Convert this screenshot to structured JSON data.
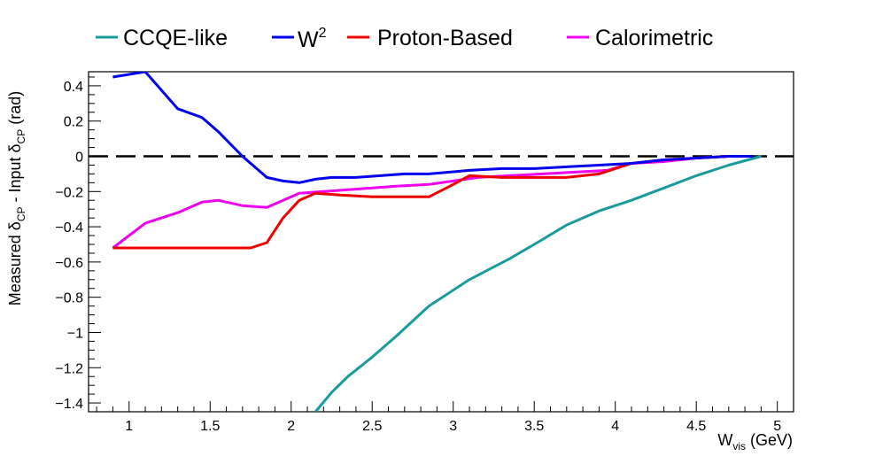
{
  "chart_data": {
    "type": "line",
    "xlabel_main": "W",
    "xlabel_sub": "vis",
    "xlabel_unit": " (GeV)",
    "ylabel_parts": {
      "a": "Measured δ",
      "a_sub": "CP",
      "b": " - Input δ",
      "b_sub": "CP",
      "c": " (rad)"
    },
    "xlim": [
      0.75,
      5.1
    ],
    "ylim": [
      -1.45,
      0.48
    ],
    "xticks": [
      1,
      1.5,
      2,
      2.5,
      3,
      3.5,
      4,
      4.5,
      5
    ],
    "xtick_labels": [
      "1",
      "1.5",
      "2",
      "2.5",
      "3",
      "3.5",
      "4",
      "4.5",
      "5"
    ],
    "yticks": [
      0.4,
      0.2,
      0,
      -0.2,
      -0.4,
      -0.6,
      -0.8,
      -1,
      -1.2,
      -1.4
    ],
    "ytick_labels": [
      "0.4",
      "0.2",
      "0",
      "−0.2",
      "−0.4",
      "−0.6",
      "−0.8",
      "−1",
      "−1.2",
      "−1.4"
    ],
    "reference_line": {
      "y": 0,
      "style": "dashed",
      "color": "#000000"
    },
    "series": [
      {
        "name": "CCQE-like",
        "color": "#1a9b9b",
        "x": [
          2.15,
          2.25,
          2.35,
          2.5,
          2.65,
          2.85,
          3.1,
          3.35,
          3.5,
          3.7,
          3.9,
          4.1,
          4.3,
          4.5,
          4.7,
          4.9
        ],
        "y": [
          -1.45,
          -1.34,
          -1.25,
          -1.14,
          -1.02,
          -0.85,
          -0.7,
          -0.58,
          -0.5,
          -0.39,
          -0.31,
          -0.25,
          -0.18,
          -0.11,
          -0.05,
          0.0
        ]
      },
      {
        "name": "W",
        "name_sup": "2",
        "color": "#0000ee",
        "x": [
          0.9,
          1.1,
          1.3,
          1.45,
          1.55,
          1.7,
          1.8,
          1.85,
          1.95,
          2.05,
          2.15,
          2.25,
          2.4,
          2.55,
          2.7,
          2.85,
          3.1,
          3.3,
          3.5,
          3.7,
          3.9,
          4.1,
          4.3,
          4.5,
          4.7,
          4.85
        ],
        "y": [
          0.45,
          0.48,
          0.27,
          0.22,
          0.14,
          0.0,
          -0.08,
          -0.12,
          -0.14,
          -0.15,
          -0.13,
          -0.12,
          -0.12,
          -0.11,
          -0.1,
          -0.1,
          -0.08,
          -0.07,
          -0.07,
          -0.06,
          -0.05,
          -0.04,
          -0.02,
          -0.01,
          0.0,
          0.0
        ]
      },
      {
        "name": "Proton-Based",
        "color": "#ee0000",
        "x": [
          0.9,
          1.0,
          1.2,
          1.4,
          1.6,
          1.75,
          1.85,
          1.95,
          2.05,
          2.15,
          2.3,
          2.5,
          2.7,
          2.85,
          3.0,
          3.1,
          3.3,
          3.5,
          3.7,
          3.9,
          4.1,
          4.3,
          4.5,
          4.7,
          4.85
        ],
        "y": [
          -0.52,
          -0.52,
          -0.52,
          -0.52,
          -0.52,
          -0.52,
          -0.49,
          -0.35,
          -0.25,
          -0.21,
          -0.22,
          -0.23,
          -0.23,
          -0.23,
          -0.16,
          -0.11,
          -0.12,
          -0.12,
          -0.12,
          -0.1,
          -0.04,
          -0.02,
          -0.01,
          0.0,
          0.0
        ]
      },
      {
        "name": "Calorimetric",
        "color": "#ee00ee",
        "x": [
          0.9,
          1.0,
          1.1,
          1.3,
          1.45,
          1.55,
          1.7,
          1.85,
          1.95,
          2.05,
          2.2,
          2.35,
          2.5,
          2.65,
          2.85,
          3.0,
          3.15,
          3.35,
          3.55,
          3.75,
          3.95,
          4.1,
          4.3,
          4.5,
          4.7,
          4.85
        ],
        "y": [
          -0.52,
          -0.45,
          -0.38,
          -0.32,
          -0.26,
          -0.25,
          -0.28,
          -0.29,
          -0.25,
          -0.21,
          -0.2,
          -0.19,
          -0.18,
          -0.17,
          -0.16,
          -0.14,
          -0.12,
          -0.11,
          -0.1,
          -0.09,
          -0.08,
          -0.04,
          -0.03,
          -0.01,
          0.0,
          0.0
        ]
      }
    ]
  }
}
